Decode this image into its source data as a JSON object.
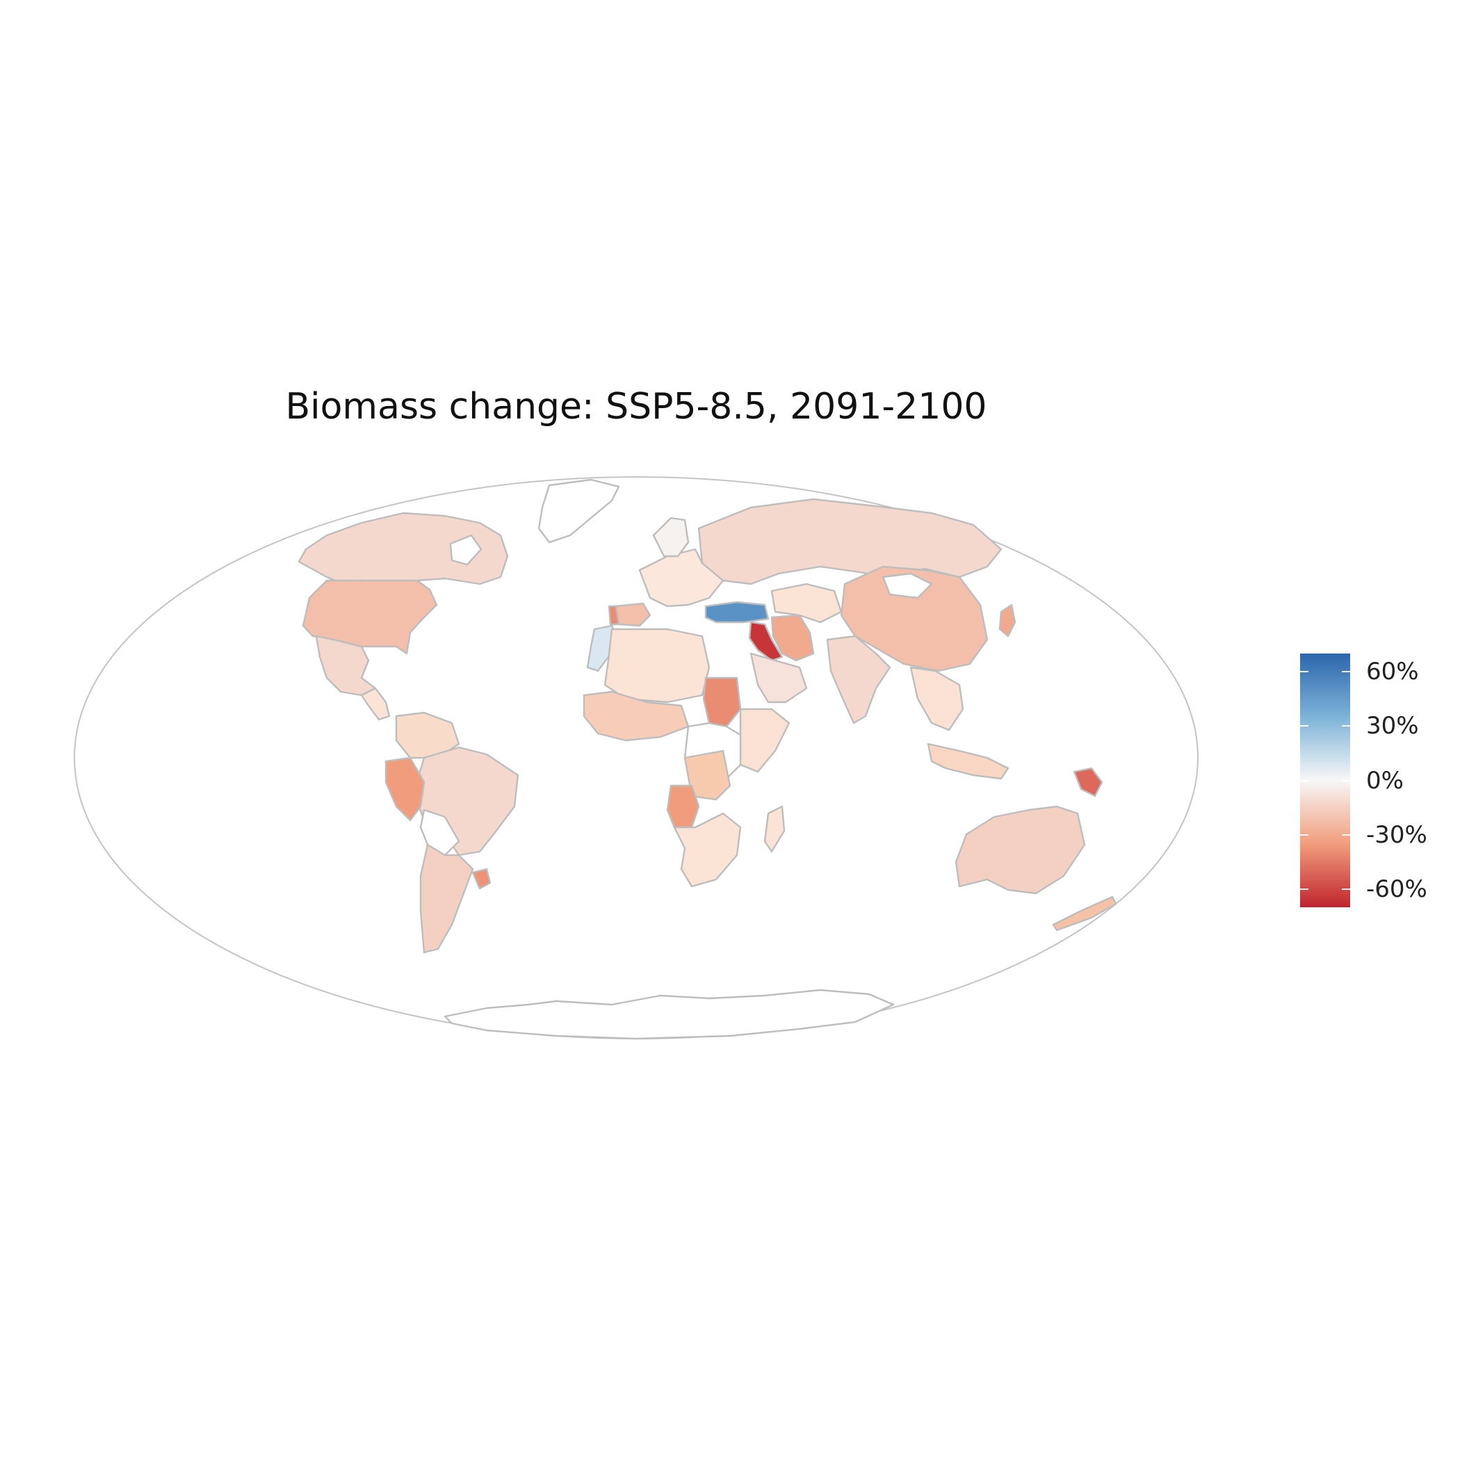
{
  "title": "Biomass change: SSP5-8.5, 2091-2100",
  "legend": {
    "ticks": [
      "60%",
      "30%",
      "0%",
      "-30%",
      "-60%"
    ],
    "tick_values": [
      60,
      30,
      0,
      -30,
      -60
    ],
    "min": -70,
    "max": 70,
    "colors": {
      "max": "#2b66ac",
      "mid_high": "#7db3d8",
      "zero": "#f7f7f7",
      "mid_low": "#f19d7d",
      "min": "#c0242e"
    }
  },
  "projection": "Mollweide",
  "chart_data": {
    "type": "choropleth",
    "title": "Biomass change: SSP5-8.5, 2091-2100",
    "scale_range": [
      -70,
      70
    ],
    "regions": [
      {
        "name": "Canada",
        "value": -12
      },
      {
        "name": "United States",
        "value": -22
      },
      {
        "name": "Mexico",
        "value": -12
      },
      {
        "name": "Brazil",
        "value": -12
      },
      {
        "name": "Peru",
        "value": -35
      },
      {
        "name": "Argentina",
        "value": -15
      },
      {
        "name": "Uruguay",
        "value": -38
      },
      {
        "name": "Russia",
        "value": -12
      },
      {
        "name": "China",
        "value": -22
      },
      {
        "name": "India",
        "value": -12
      },
      {
        "name": "Australia",
        "value": -15
      },
      {
        "name": "Turkey",
        "value": 50
      },
      {
        "name": "Iraq",
        "value": -65
      },
      {
        "name": "Iran",
        "value": -30
      },
      {
        "name": "Sudan",
        "value": -40
      },
      {
        "name": "Angola",
        "value": -35
      },
      {
        "name": "Papua New Guinea",
        "value": -50
      },
      {
        "name": "Morocco",
        "value": 8
      },
      {
        "name": "Portugal",
        "value": -40
      },
      {
        "name": "Spain",
        "value": -22
      },
      {
        "name": "Saudi Arabia",
        "value": -8
      },
      {
        "name": "Japan",
        "value": -30
      }
    ]
  }
}
